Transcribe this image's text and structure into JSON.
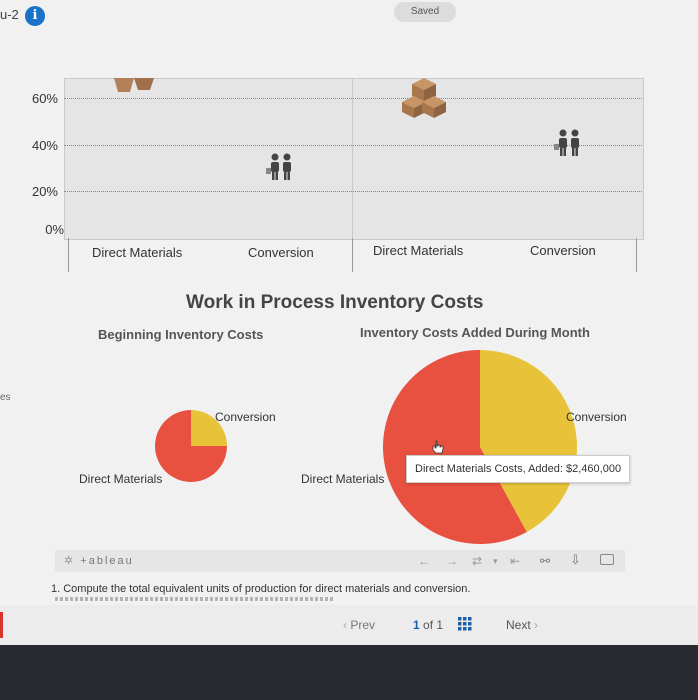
{
  "topbar": {
    "question_label": "u-2",
    "saved_label": "Saved"
  },
  "side_fragment": "es",
  "bar_chart": {
    "y_ticks": [
      "60%",
      "40%",
      "20%",
      "0%"
    ],
    "categories": [
      "Direct Materials",
      "Conversion",
      "Direct Materials",
      "Conversion"
    ]
  },
  "pie_section": {
    "title": "Work in Process Inventory Costs",
    "left_subtitle": "Beginning Inventory Costs",
    "right_subtitle": "Inventory Costs Added During Month",
    "left_labels": {
      "conversion": "Conversion",
      "dm": "Direct Materials"
    },
    "right_labels": {
      "conversion": "Conversion",
      "dm": "Direct Materials"
    },
    "tooltip": "Direct Materials Costs, Added: $2,460,000"
  },
  "chart_data": [
    {
      "type": "pie",
      "title": "Beginning Inventory Costs",
      "categories": [
        "Direct Materials",
        "Conversion"
      ],
      "values": [
        75,
        25
      ],
      "colors": [
        "#e8503f",
        "#e8c33a"
      ]
    },
    {
      "type": "pie",
      "title": "Inventory Costs Added During Month",
      "categories": [
        "Direct Materials",
        "Conversion"
      ],
      "values": [
        58,
        42
      ],
      "colors": [
        "#e8503f",
        "#e8c33a"
      ]
    }
  ],
  "tableau": {
    "logo": "+ableau"
  },
  "question": {
    "text": "1. Compute the total equivalent units of production for direct materials and conversion."
  },
  "pager": {
    "prev": "Prev",
    "current": "1",
    "of_label": "of 1",
    "next": "Next"
  },
  "colors": {
    "dm": "#e8503f",
    "conversion": "#e8c33a",
    "link": "#1a5fa8"
  }
}
